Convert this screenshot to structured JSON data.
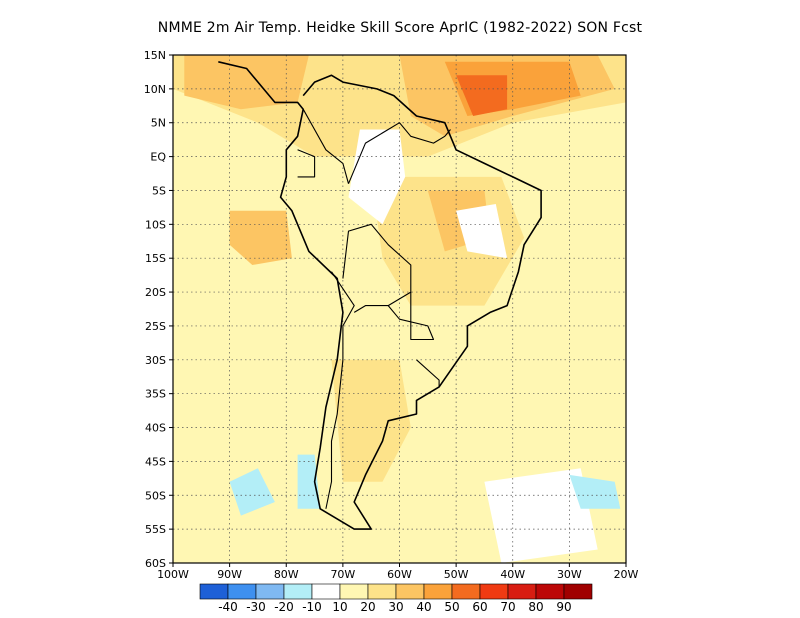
{
  "title": "NMME  2m Air Temp. Heidke Skill Score AprIC (1982-2022) SON Fcst",
  "map": {
    "lon_range": [
      -100,
      -20
    ],
    "lat_range": [
      -60,
      15
    ],
    "lat_ticks": [
      {
        "value": 15,
        "label": "15N"
      },
      {
        "value": 10,
        "label": "10N"
      },
      {
        "value": 5,
        "label": "5N"
      },
      {
        "value": 0,
        "label": "EQ"
      },
      {
        "value": -5,
        "label": "5S"
      },
      {
        "value": -10,
        "label": "10S"
      },
      {
        "value": -15,
        "label": "15S"
      },
      {
        "value": -20,
        "label": "20S"
      },
      {
        "value": -25,
        "label": "25S"
      },
      {
        "value": -30,
        "label": "30S"
      },
      {
        "value": -35,
        "label": "35S"
      },
      {
        "value": -40,
        "label": "40S"
      },
      {
        "value": -45,
        "label": "45S"
      },
      {
        "value": -50,
        "label": "50S"
      },
      {
        "value": -55,
        "label": "55S"
      },
      {
        "value": -60,
        "label": "60S"
      }
    ],
    "lon_ticks": [
      {
        "value": -100,
        "label": "100W"
      },
      {
        "value": -90,
        "label": "90W"
      },
      {
        "value": -80,
        "label": "80W"
      },
      {
        "value": -70,
        "label": "70W"
      },
      {
        "value": -60,
        "label": "60W"
      },
      {
        "value": -50,
        "label": "50W"
      },
      {
        "value": -40,
        "label": "40W"
      },
      {
        "value": -30,
        "label": "30W"
      },
      {
        "value": -20,
        "label": "20W"
      }
    ],
    "grid": "dotted",
    "fields": [
      {
        "name": "background",
        "level": 10,
        "color": "#fff7b3",
        "poly": [
          [
            -100,
            15
          ],
          [
            -20,
            15
          ],
          [
            -20,
            -60
          ],
          [
            -100,
            -60
          ]
        ]
      },
      {
        "name": "north-sea",
        "level": 20,
        "color": "#fde38a",
        "poly": [
          [
            -100,
            15
          ],
          [
            -20,
            15
          ],
          [
            -20,
            8
          ],
          [
            -40,
            5
          ],
          [
            -55,
            0
          ],
          [
            -75,
            0
          ],
          [
            -85,
            5
          ],
          [
            -100,
            10
          ]
        ]
      },
      {
        "name": "brazil-interior",
        "level": 20,
        "color": "#fde38a",
        "poly": [
          [
            -65,
            -3
          ],
          [
            -42,
            -3
          ],
          [
            -38,
            -12
          ],
          [
            -45,
            -22
          ],
          [
            -58,
            -22
          ],
          [
            -63,
            -15
          ]
        ]
      },
      {
        "name": "patagonia-warm",
        "level": 20,
        "color": "#fde38a",
        "poly": [
          [
            -72,
            -30
          ],
          [
            -60,
            -30
          ],
          [
            -58,
            -40
          ],
          [
            -63,
            -48
          ],
          [
            -70,
            -48
          ]
        ]
      },
      {
        "name": "n-atlantic-warm",
        "level": 30,
        "color": "#fcc563",
        "poly": [
          [
            -60,
            15
          ],
          [
            -25,
            15
          ],
          [
            -22,
            10
          ],
          [
            -40,
            6
          ],
          [
            -52,
            3
          ],
          [
            -58,
            6
          ]
        ]
      },
      {
        "name": "pacific-warm",
        "level": 30,
        "color": "#fcc563",
        "poly": [
          [
            -98,
            15
          ],
          [
            -76,
            15
          ],
          [
            -78,
            8
          ],
          [
            -88,
            7
          ],
          [
            -98,
            9
          ]
        ]
      },
      {
        "name": "east-pacific-warm",
        "level": 30,
        "color": "#fcc563",
        "poly": [
          [
            -90,
            -8
          ],
          [
            -80,
            -8
          ],
          [
            -79,
            -15
          ],
          [
            -86,
            -16
          ],
          [
            -90,
            -13
          ]
        ]
      },
      {
        "name": "amazon-warm",
        "level": 30,
        "color": "#fcc563",
        "poly": [
          [
            -55,
            -5
          ],
          [
            -45,
            -5
          ],
          [
            -44,
            -12
          ],
          [
            -52,
            -14
          ]
        ]
      },
      {
        "name": "atlantic-hot",
        "level": 40,
        "color": "#faa23a",
        "poly": [
          [
            -52,
            14
          ],
          [
            -30,
            14
          ],
          [
            -28,
            9
          ],
          [
            -40,
            7
          ],
          [
            -48,
            6
          ]
        ]
      },
      {
        "name": "caribbean-hot",
        "level": 50,
        "color": "#f36b1f",
        "poly": [
          [
            -50,
            12
          ],
          [
            -41,
            12
          ],
          [
            -41,
            7
          ],
          [
            -47,
            6
          ]
        ]
      },
      {
        "name": "amazon-white",
        "level": 0,
        "color": "#ffffff",
        "poly": [
          [
            -67,
            4
          ],
          [
            -60,
            4
          ],
          [
            -59,
            -3
          ],
          [
            -63,
            -10
          ],
          [
            -69,
            -6
          ]
        ]
      },
      {
        "name": "cerrado-white",
        "level": 0,
        "color": "#ffffff",
        "poly": [
          [
            -50,
            -8
          ],
          [
            -43,
            -7
          ],
          [
            -41,
            -15
          ],
          [
            -48,
            -14
          ]
        ]
      },
      {
        "name": "south-atlantic-white",
        "level": 0,
        "color": "#ffffff",
        "poly": [
          [
            -45,
            -48
          ],
          [
            -28,
            -46
          ],
          [
            -25,
            -58
          ],
          [
            -42,
            -60
          ]
        ]
      },
      {
        "name": "south-pacific-cool",
        "level": -10,
        "color": "#b3eef7",
        "poly": [
          [
            -90,
            -48
          ],
          [
            -85,
            -46
          ],
          [
            -82,
            -51
          ],
          [
            -88,
            -53
          ]
        ]
      },
      {
        "name": "south-pacific-cool-2",
        "level": -10,
        "color": "#b3eef7",
        "poly": [
          [
            -78,
            -44
          ],
          [
            -75,
            -44
          ],
          [
            -74,
            -52
          ],
          [
            -78,
            -52
          ]
        ]
      },
      {
        "name": "south-atlantic-cool",
        "level": -10,
        "color": "#b3eef7",
        "poly": [
          [
            -30,
            -47
          ],
          [
            -22,
            -48
          ],
          [
            -21,
            -52
          ],
          [
            -28,
            -52
          ]
        ]
      }
    ],
    "coastlines": [
      [
        [
          -92,
          14
        ],
        [
          -87,
          13
        ],
        [
          -84,
          10
        ],
        [
          -82,
          8
        ],
        [
          -78,
          8
        ],
        [
          -77,
          7
        ],
        [
          -78,
          3
        ],
        [
          -80,
          1
        ],
        [
          -80,
          -3
        ],
        [
          -81,
          -6
        ],
        [
          -79,
          -8
        ],
        [
          -76,
          -14
        ],
        [
          -71,
          -18
        ],
        [
          -70,
          -23
        ],
        [
          -71,
          -30
        ],
        [
          -73,
          -37
        ],
        [
          -74,
          -43
        ],
        [
          -75,
          -48
        ],
        [
          -74,
          -52
        ],
        [
          -68,
          -55
        ],
        [
          -65,
          -55
        ],
        [
          -68,
          -51
        ],
        [
          -66,
          -47
        ],
        [
          -63,
          -42
        ],
        [
          -62,
          -39
        ],
        [
          -57,
          -38
        ],
        [
          -57,
          -36
        ],
        [
          -53,
          -34
        ],
        [
          -48,
          -28
        ],
        [
          -48,
          -25
        ],
        [
          -44,
          -23
        ],
        [
          -41,
          -22
        ],
        [
          -39,
          -17
        ],
        [
          -38,
          -13
        ],
        [
          -35,
          -9
        ],
        [
          -35,
          -5
        ],
        [
          -40,
          -3
        ],
        [
          -45,
          -1
        ],
        [
          -50,
          1
        ],
        [
          -52,
          5
        ],
        [
          -57,
          6
        ],
        [
          -61,
          9
        ],
        [
          -64,
          10
        ],
        [
          -70,
          11
        ],
        [
          -72,
          12
        ],
        [
          -75,
          11
        ],
        [
          -77,
          9
        ]
      ]
    ],
    "borders": [
      [
        [
          -77,
          7
        ],
        [
          -73,
          1
        ],
        [
          -70,
          -1
        ],
        [
          -69,
          -4
        ]
      ],
      [
        [
          -78,
          1
        ],
        [
          -75,
          0
        ],
        [
          -75,
          -3
        ],
        [
          -78,
          -3
        ]
      ],
      [
        [
          -70,
          -18
        ],
        [
          -69,
          -11
        ],
        [
          -65,
          -10
        ],
        [
          -62,
          -13
        ],
        [
          -58,
          -16
        ],
        [
          -58,
          -20
        ],
        [
          -62,
          -22
        ],
        [
          -66,
          -22
        ],
        [
          -68,
          -23
        ]
      ],
      [
        [
          -62,
          -22
        ],
        [
          -60,
          -24
        ],
        [
          -55,
          -25
        ],
        [
          -54,
          -27
        ],
        [
          -58,
          -27
        ],
        [
          -58,
          -20
        ]
      ],
      [
        [
          -57,
          -30
        ],
        [
          -53,
          -33
        ],
        [
          -53,
          -34
        ]
      ],
      [
        [
          -69,
          -4
        ],
        [
          -66,
          2
        ],
        [
          -62,
          4
        ],
        [
          -60,
          5
        ],
        [
          -58,
          3
        ],
        [
          -54,
          2
        ],
        [
          -52,
          3
        ],
        [
          -51,
          4
        ]
      ],
      [
        [
          -72,
          -17
        ],
        [
          -68,
          -22
        ],
        [
          -70,
          -25
        ],
        [
          -70,
          -30
        ],
        [
          -71,
          -38
        ],
        [
          -72,
          -42
        ],
        [
          -72,
          -48
        ],
        [
          -73,
          -52
        ]
      ]
    ]
  },
  "colorbar": {
    "colors": [
      "#1e60d7",
      "#3e90f0",
      "#7fb9f2",
      "#b3eef7",
      "#ffffff",
      "#fff7b3",
      "#fde38a",
      "#fcc563",
      "#faa23a",
      "#f36b1f",
      "#f03a12",
      "#d81d12",
      "#bc0707",
      "#a00000"
    ],
    "labels": [
      "-40",
      "-30",
      "-20",
      "-10",
      "10",
      "20",
      "30",
      "40",
      "50",
      "60",
      "70",
      "80",
      "90"
    ]
  }
}
